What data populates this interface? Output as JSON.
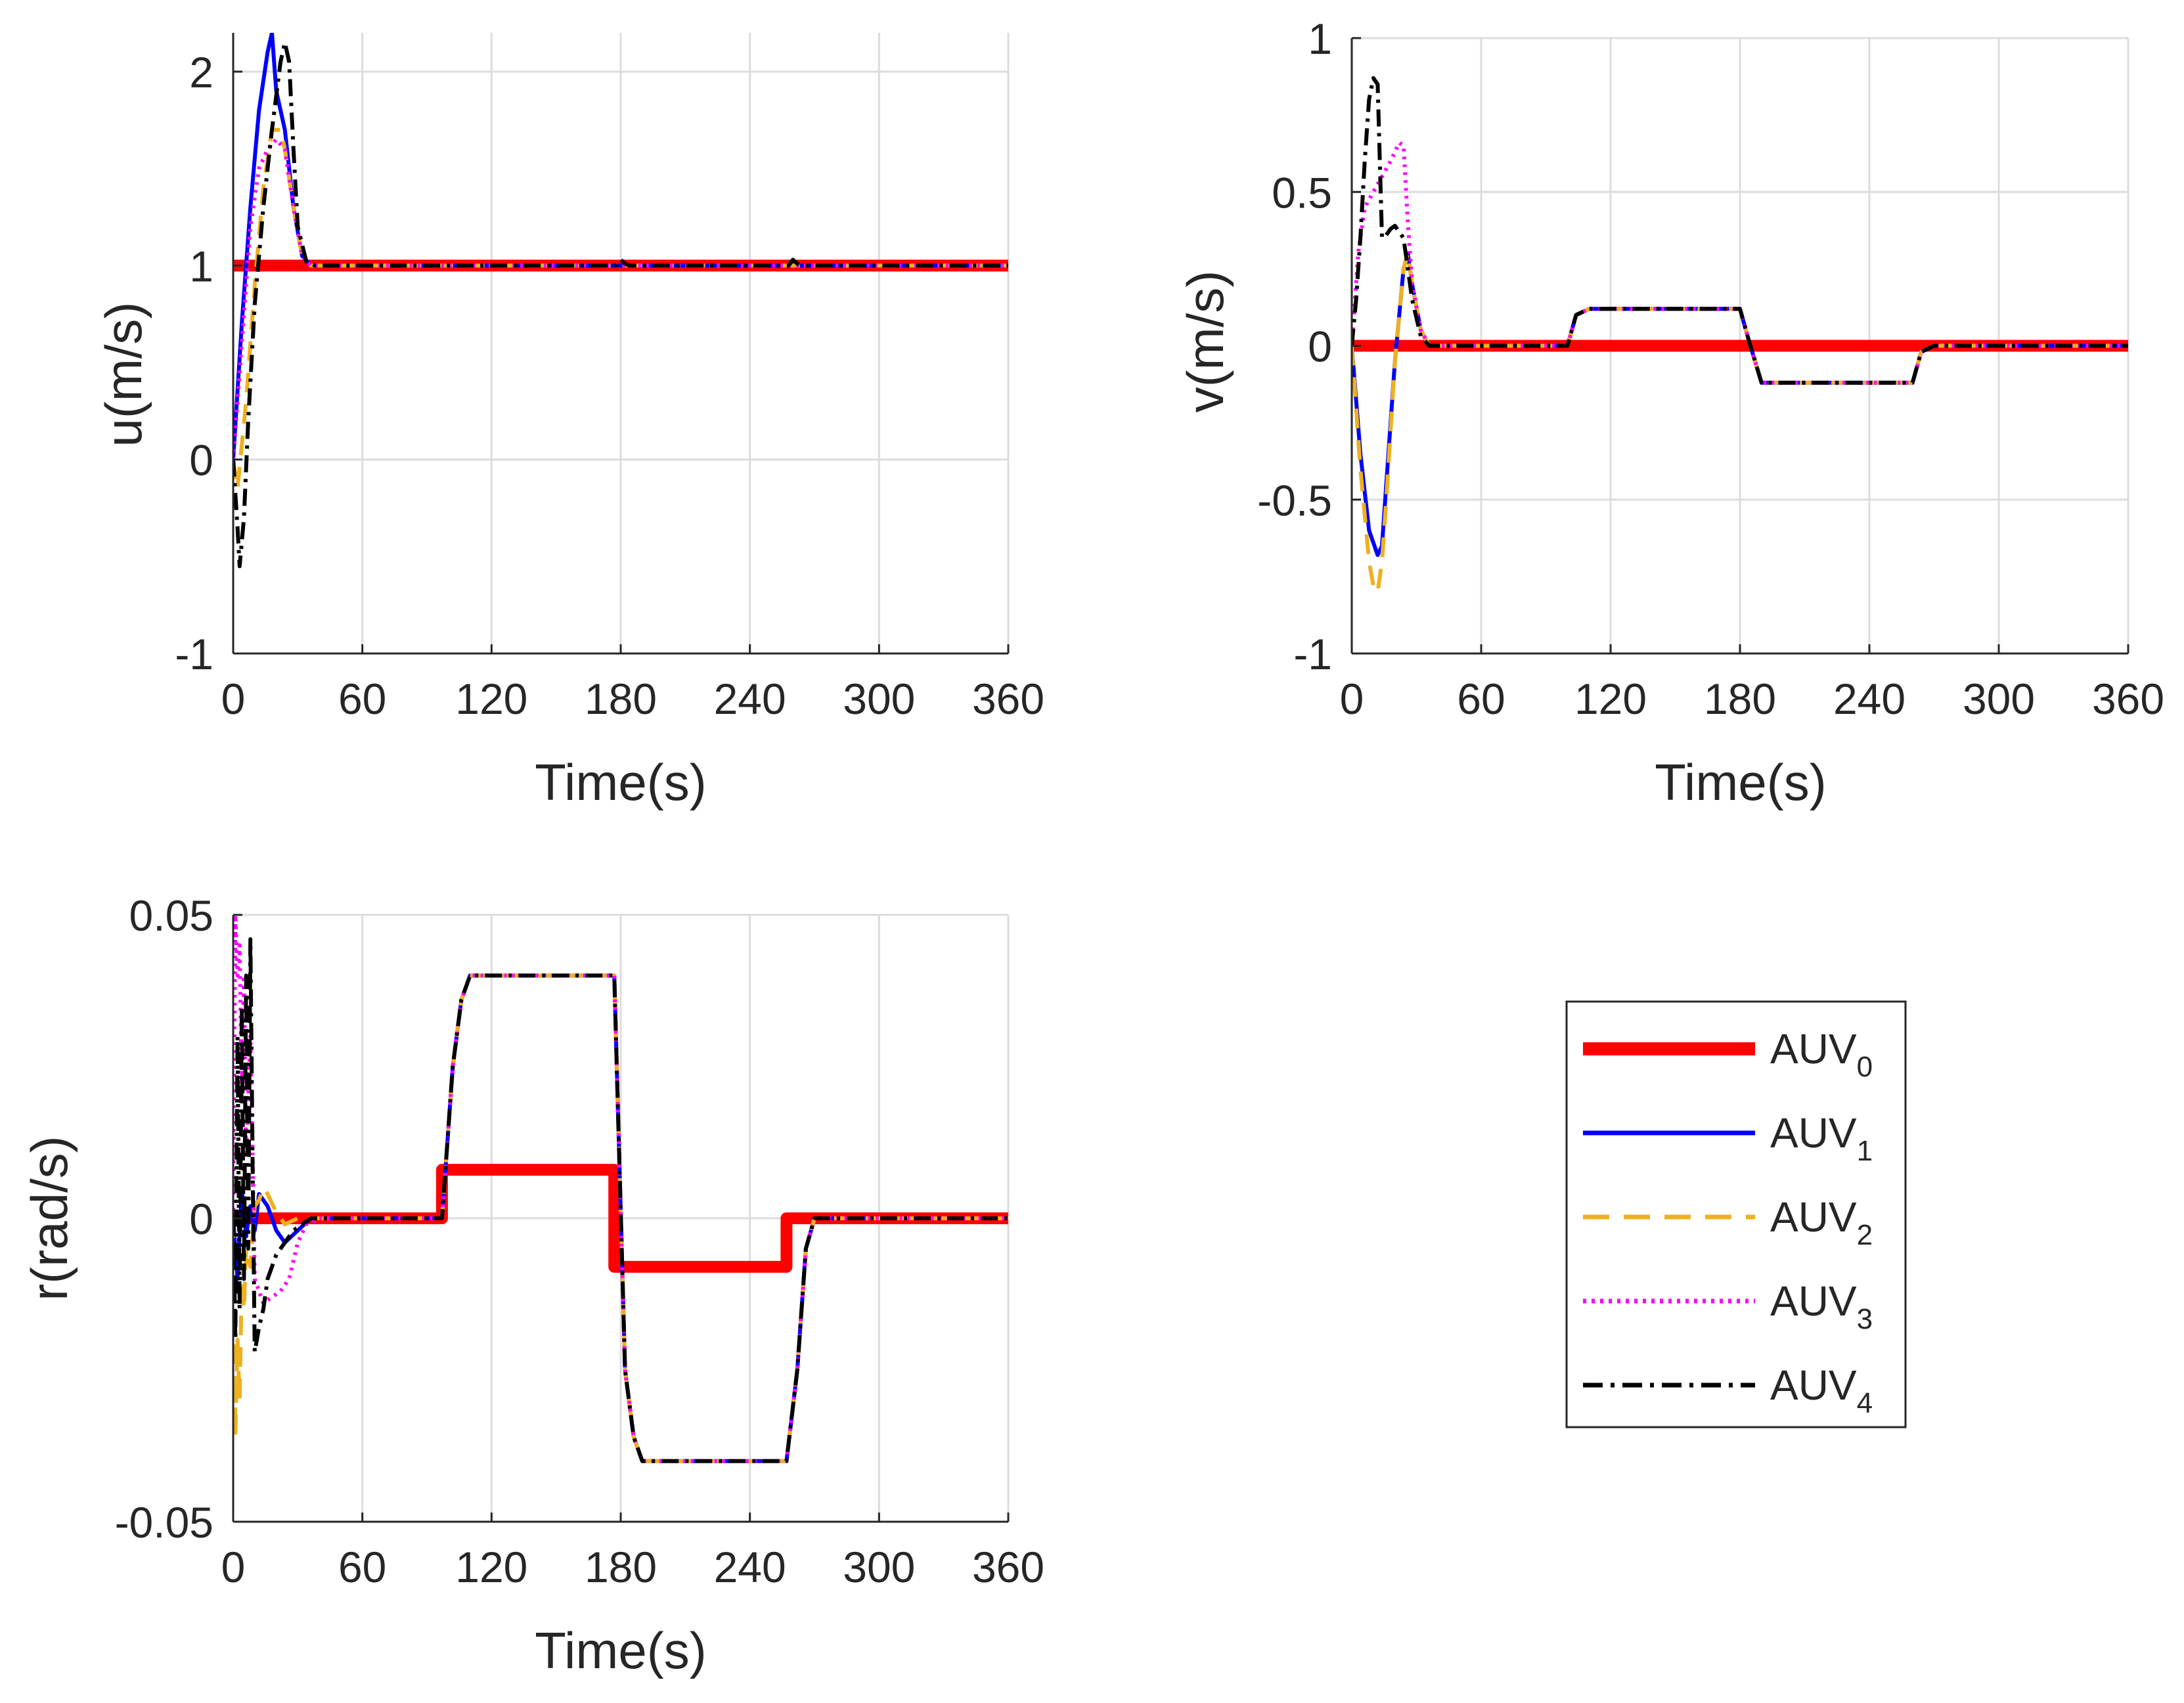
{
  "chart_data": [
    {
      "id": "u",
      "type": "line",
      "xlabel": "Time(s)",
      "ylabel": "u(m/s)",
      "xlim": [
        0,
        360
      ],
      "ylim": [
        -1,
        2.2
      ],
      "xticks": [
        0,
        60,
        120,
        180,
        240,
        300,
        360
      ],
      "xtick_labels": [
        "0",
        "60",
        "120",
        "180",
        "240",
        "300",
        "360"
      ],
      "yticks": [
        -1,
        0,
        1,
        2
      ],
      "ytick_labels": [
        "-1",
        "0",
        "1",
        "2"
      ],
      "grid": true,
      "series": [
        {
          "name": "AUV0",
          "x": [
            0,
            360
          ],
          "y": [
            1,
            1
          ]
        },
        {
          "name": "AUV1",
          "x": [
            0,
            4,
            8,
            12,
            16,
            18,
            20,
            24,
            28,
            32,
            36,
            60,
            180,
            260,
            360
          ],
          "y": [
            0,
            0.7,
            1.3,
            1.8,
            2.1,
            2.2,
            1.9,
            1.7,
            1.3,
            1.05,
            1,
            1,
            1,
            1,
            1
          ]
        },
        {
          "name": "AUV2",
          "x": [
            0,
            2,
            6,
            10,
            14,
            18,
            22,
            24,
            28,
            32,
            36,
            60,
            360
          ],
          "y": [
            0,
            -0.15,
            0.3,
            0.9,
            1.4,
            1.7,
            1.7,
            1.6,
            1.3,
            1.05,
            1,
            1,
            1
          ]
        },
        {
          "name": "AUV3",
          "x": [
            0,
            4,
            8,
            12,
            16,
            20,
            24,
            28,
            32,
            36,
            60,
            360
          ],
          "y": [
            0,
            0.6,
            1.2,
            1.5,
            1.6,
            1.65,
            1.6,
            1.3,
            1.05,
            1,
            1,
            1
          ]
        },
        {
          "name": "AUV4",
          "x": [
            0,
            2,
            3,
            5,
            7,
            10,
            14,
            18,
            22,
            24,
            26,
            28,
            30,
            34,
            38,
            60,
            178,
            180,
            182,
            184,
            258,
            260,
            262,
            264,
            360
          ],
          "y": [
            0,
            -0.35,
            -0.55,
            -0.3,
            0.2,
            0.8,
            1.3,
            1.7,
            2.05,
            2.15,
            2.05,
            1.6,
            1.2,
            1.02,
            1,
            1,
            1,
            1.03,
            1.01,
            1,
            1,
            1.03,
            1.01,
            1,
            1
          ]
        }
      ]
    },
    {
      "id": "v",
      "type": "line",
      "xlabel": "Time(s)",
      "ylabel": "v(m/s)",
      "xlim": [
        0,
        360
      ],
      "ylim": [
        -1,
        1
      ],
      "xticks": [
        0,
        60,
        120,
        180,
        240,
        300,
        360
      ],
      "xtick_labels": [
        "0",
        "60",
        "120",
        "180",
        "240",
        "300",
        "360"
      ],
      "yticks": [
        -1,
        -0.5,
        0,
        0.5,
        1
      ],
      "ytick_labels": [
        "-1",
        "-0.5",
        "0",
        "0.5",
        "1"
      ],
      "grid": true,
      "series": [
        {
          "name": "AUV0",
          "x": [
            0,
            360
          ],
          "y": [
            0,
            0
          ]
        },
        {
          "name": "AUV1",
          "x": [
            0,
            4,
            8,
            12,
            14,
            16,
            20,
            24,
            26,
            28,
            32,
            36,
            100,
            104,
            110,
            180,
            184,
            190,
            260,
            264,
            270,
            360
          ],
          "y": [
            0,
            -0.35,
            -0.6,
            -0.68,
            -0.65,
            -0.45,
            -0.05,
            0.25,
            0.3,
            0.2,
            0.05,
            0,
            0,
            0.1,
            0.12,
            0.12,
            0.02,
            -0.12,
            -0.12,
            -0.02,
            0,
            0
          ]
        },
        {
          "name": "AUV2",
          "x": [
            0,
            4,
            8,
            10,
            12,
            14,
            16,
            20,
            24,
            26,
            28,
            32,
            36,
            100,
            104,
            110,
            180,
            184,
            190,
            260,
            264,
            270,
            360
          ],
          "y": [
            0,
            -0.4,
            -0.7,
            -0.78,
            -0.8,
            -0.7,
            -0.5,
            -0.05,
            0.25,
            0.3,
            0.2,
            0.05,
            0,
            0,
            0.1,
            0.12,
            0.12,
            0.02,
            -0.12,
            -0.12,
            -0.02,
            0,
            0
          ]
        },
        {
          "name": "AUV3",
          "x": [
            0,
            3,
            6,
            10,
            14,
            18,
            22,
            24,
            26,
            28,
            32,
            36,
            100,
            104,
            110,
            180,
            184,
            190,
            260,
            264,
            270,
            360
          ],
          "y": [
            0,
            0.3,
            0.45,
            0.5,
            0.55,
            0.6,
            0.66,
            0.65,
            0.4,
            0.2,
            0.05,
            0,
            0,
            0.1,
            0.12,
            0.12,
            0.02,
            -0.12,
            -0.12,
            -0.02,
            0,
            0
          ]
        },
        {
          "name": "AUV4",
          "x": [
            0,
            2,
            4,
            6,
            8,
            10,
            12,
            14,
            16,
            18,
            20,
            24,
            28,
            32,
            36,
            100,
            104,
            110,
            180,
            184,
            190,
            260,
            264,
            270,
            360
          ],
          "y": [
            0,
            0.15,
            0.35,
            0.6,
            0.8,
            0.87,
            0.85,
            0.35,
            0.36,
            0.38,
            0.39,
            0.35,
            0.15,
            0.03,
            0,
            0,
            0.1,
            0.12,
            0.12,
            0.02,
            -0.12,
            -0.12,
            -0.02,
            0,
            0
          ]
        }
      ]
    },
    {
      "id": "r",
      "type": "line",
      "xlabel": "Time(s)",
      "ylabel": "r(rad/s)",
      "xlim": [
        0,
        360
      ],
      "ylim": [
        -0.05,
        0.05
      ],
      "xticks": [
        0,
        60,
        120,
        180,
        240,
        300,
        360
      ],
      "xtick_labels": [
        "0",
        "60",
        "120",
        "180",
        "240",
        "300",
        "360"
      ],
      "yticks": [
        -0.05,
        0,
        0.05
      ],
      "ytick_labels": [
        "-0.05",
        "0",
        "0.05"
      ],
      "grid": true,
      "series": [
        {
          "name": "AUV0",
          "x": [
            0,
            97,
            97,
            177,
            177,
            257,
            257,
            360
          ],
          "y": [
            0,
            0,
            0.008,
            0.008,
            -0.008,
            -0.008,
            0,
            0
          ]
        },
        {
          "name": "AUV1",
          "x": [
            0,
            2,
            4,
            6,
            8,
            10,
            12,
            16,
            20,
            24,
            30,
            36,
            97,
            102,
            106,
            110,
            177,
            182,
            186,
            190,
            257,
            262,
            266,
            270,
            360
          ],
          "y": [
            0,
            -0.01,
            0.005,
            -0.003,
            0.002,
            -0.002,
            0.004,
            0.002,
            -0.002,
            -0.004,
            -0.002,
            0,
            0,
            0.025,
            0.036,
            0.04,
            0.04,
            -0.025,
            -0.036,
            -0.04,
            -0.04,
            -0.025,
            -0.005,
            0,
            0
          ]
        },
        {
          "name": "AUV2",
          "x": [
            0,
            1,
            2,
            3,
            4,
            5,
            6,
            8,
            10,
            12,
            14,
            16,
            20,
            24,
            30,
            97,
            102,
            106,
            110,
            177,
            182,
            186,
            190,
            257,
            262,
            266,
            270,
            360
          ],
          "y": [
            0,
            -0.036,
            -0.02,
            -0.03,
            -0.01,
            -0.015,
            -0.005,
            -0.008,
            0.002,
            0.003,
            0.005,
            0.004,
            0.001,
            -0.001,
            0,
            0,
            0.025,
            0.036,
            0.04,
            0.04,
            -0.025,
            -0.036,
            -0.04,
            -0.04,
            -0.025,
            -0.005,
            0,
            0
          ]
        },
        {
          "name": "AUV3",
          "x": [
            0,
            1,
            2,
            3,
            4,
            5,
            6,
            8,
            10,
            12,
            14,
            18,
            22,
            26,
            30,
            34,
            40,
            97,
            102,
            106,
            110,
            177,
            182,
            186,
            190,
            257,
            262,
            266,
            270,
            360
          ],
          "y": [
            0,
            0.05,
            0.04,
            0.045,
            0.02,
            0.04,
            0.01,
            0.03,
            -0.01,
            -0.012,
            -0.014,
            -0.013,
            -0.012,
            -0.01,
            -0.004,
            -0.001,
            0,
            0,
            0.025,
            0.036,
            0.04,
            0.04,
            -0.025,
            -0.036,
            -0.04,
            -0.04,
            -0.025,
            -0.005,
            0,
            0
          ]
        },
        {
          "name": "AUV4",
          "x": [
            0,
            1,
            2,
            3,
            4,
            5,
            6,
            7,
            8,
            9,
            10,
            11,
            12,
            14,
            16,
            18,
            20,
            24,
            28,
            32,
            36,
            40,
            97,
            102,
            106,
            110,
            177,
            182,
            186,
            190,
            257,
            262,
            266,
            270,
            360
          ],
          "y": [
            0,
            -0.02,
            0.03,
            -0.015,
            0.035,
            -0.01,
            0.04,
            -0.005,
            0.046,
            0.01,
            -0.022,
            -0.02,
            -0.018,
            -0.015,
            -0.01,
            -0.008,
            -0.006,
            -0.004,
            -0.002,
            -0.001,
            0,
            0,
            0,
            0.025,
            0.036,
            0.04,
            0.04,
            -0.025,
            -0.036,
            -0.04,
            -0.04,
            -0.025,
            -0.005,
            0,
            0
          ]
        }
      ]
    }
  ],
  "legend": {
    "placement": "lower-right",
    "entries": [
      {
        "series": "AUV0",
        "base": "AUV",
        "sub": "0",
        "color": "#ff0000",
        "style": "solid-thick"
      },
      {
        "series": "AUV1",
        "base": "AUV",
        "sub": "1",
        "color": "#0000ff",
        "style": "solid"
      },
      {
        "series": "AUV2",
        "base": "AUV",
        "sub": "2",
        "color": "#edb120",
        "style": "dashed"
      },
      {
        "series": "AUV3",
        "base": "AUV",
        "sub": "3",
        "color": "#ff00ff",
        "style": "dotted"
      },
      {
        "series": "AUV4",
        "base": "AUV",
        "sub": "4",
        "color": "#000000",
        "style": "dashdot"
      }
    ]
  },
  "colors": {
    "AUV0": "#ff0000",
    "AUV1": "#0000ff",
    "AUV2": "#edb120",
    "AUV3": "#ff00ff",
    "AUV4": "#000000",
    "grid": "#dcdcdc",
    "axis": "#262626"
  }
}
